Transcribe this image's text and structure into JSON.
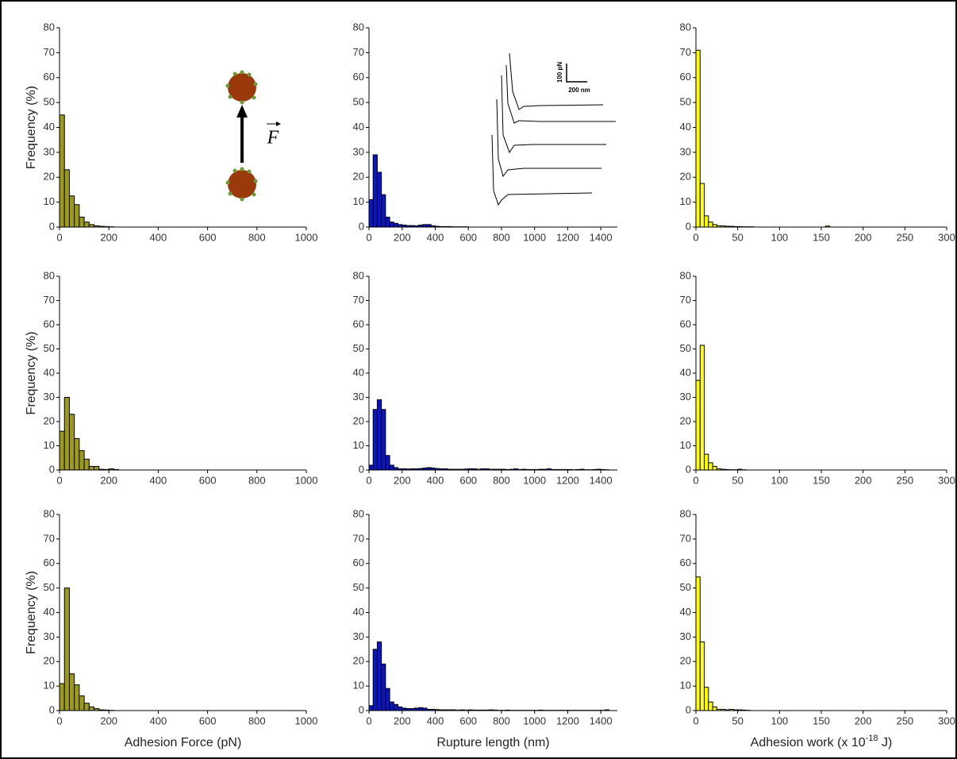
{
  "chart_data": [
    {
      "type": "histogram",
      "color": "#9b9a1c",
      "edgecolor": "#000000",
      "y_label": "Frequency (%)",
      "annotations": [
        "F"
      ],
      "bins": [
        0,
        20,
        40,
        60,
        80,
        100,
        120,
        140,
        160,
        180,
        200,
        220
      ],
      "values": [
        45,
        23,
        12.5,
        9,
        4,
        2,
        1,
        0.5,
        0.3,
        0.2,
        0.1
      ],
      "xlim": [
        0,
        1000
      ],
      "xticks": [
        0,
        200,
        400,
        600,
        800,
        1000
      ],
      "ylim": [
        0,
        80
      ],
      "yticks": [
        0,
        10,
        20,
        30,
        40,
        50,
        60,
        70,
        80
      ]
    },
    {
      "type": "histogram",
      "color": "#0a14c8",
      "edgecolor": "#000000",
      "annotations": [
        "100 pN",
        "200 nm"
      ],
      "bins": [
        0,
        25,
        50,
        75,
        100,
        125,
        150,
        175,
        200,
        225,
        250,
        275,
        300,
        325,
        350,
        375,
        400,
        425,
        450,
        475,
        500,
        525,
        550,
        575,
        600
      ],
      "values": [
        11,
        29,
        22,
        13,
        4,
        2,
        1.5,
        1,
        0.8,
        0.6,
        0.6,
        0.5,
        0.8,
        1,
        1,
        0.5,
        0.3,
        0.2,
        0.2,
        0.2,
        0.1,
        0.1,
        0.1,
        0.1
      ],
      "xlim": [
        0,
        1500
      ],
      "xticks": [
        0,
        200,
        400,
        600,
        800,
        1000,
        1200,
        1400
      ],
      "ylim": [
        0,
        80
      ],
      "yticks": [
        0,
        10,
        20,
        30,
        40,
        50,
        60,
        70,
        80
      ]
    },
    {
      "type": "histogram",
      "color": "#ffff00",
      "edgecolor": "#000000",
      "bins": [
        0,
        5,
        10,
        15,
        20,
        25,
        30,
        35,
        40,
        45,
        50,
        55,
        60,
        65,
        70,
        75,
        80,
        85,
        90,
        95,
        100,
        105,
        110,
        115,
        120,
        125,
        130,
        135,
        140,
        145,
        150,
        155,
        160
      ],
      "values": [
        71,
        17.5,
        4.5,
        2,
        1,
        0.5,
        0.5,
        0.3,
        0.3,
        0.2,
        0.2,
        0.1,
        0.1,
        0.1,
        0,
        0,
        0,
        0,
        0,
        0,
        0,
        0,
        0,
        0,
        0,
        0,
        0,
        0,
        0,
        0,
        0,
        0.4
      ],
      "xlim": [
        0,
        300
      ],
      "xticks": [
        0,
        50,
        100,
        150,
        200,
        250,
        300
      ],
      "ylim": [
        0,
        80
      ],
      "yticks": [
        0,
        10,
        20,
        30,
        40,
        50,
        60,
        70,
        80
      ]
    },
    {
      "type": "histogram",
      "color": "#9b9a1c",
      "edgecolor": "#000000",
      "y_label": "Frequency (%)",
      "bins": [
        0,
        20,
        40,
        60,
        80,
        100,
        120,
        140,
        160,
        180,
        200,
        220,
        240
      ],
      "values": [
        16,
        30,
        23,
        13,
        8,
        4.5,
        1.5,
        1.5,
        0.3,
        0.2,
        0.5,
        0.2
      ],
      "xlim": [
        0,
        1000
      ],
      "xticks": [
        0,
        200,
        400,
        600,
        800,
        1000
      ],
      "ylim": [
        0,
        80
      ],
      "yticks": [
        0,
        10,
        20,
        30,
        40,
        50,
        60,
        70,
        80
      ]
    },
    {
      "type": "histogram",
      "color": "#0a14c8",
      "edgecolor": "#000000",
      "bins": [
        0,
        25,
        50,
        75,
        100,
        125,
        150,
        175,
        200,
        225,
        250,
        275,
        300,
        325,
        350,
        375,
        400,
        425,
        450,
        475,
        500,
        525,
        550,
        575,
        600,
        625,
        650,
        675,
        700,
        725,
        750,
        775,
        800,
        825,
        850,
        875,
        900,
        925,
        950,
        975,
        1000,
        1025,
        1050,
        1075,
        1100,
        1125,
        1150,
        1175,
        1200,
        1225,
        1250,
        1275,
        1300,
        1325,
        1350,
        1375,
        1400,
        1425,
        1450
      ],
      "values": [
        2,
        25,
        29,
        25,
        6,
        2,
        1,
        0.5,
        0.5,
        0.4,
        0.5,
        0.5,
        0.6,
        0.8,
        1,
        0.8,
        0.6,
        0.5,
        0.5,
        0.3,
        0.3,
        0.3,
        0.3,
        0.4,
        0.5,
        0.5,
        0.3,
        0.5,
        0.5,
        0.3,
        0.3,
        0.3,
        0.3,
        0.2,
        0.3,
        0.5,
        0.2,
        0.3,
        0.2,
        0.2,
        0.2,
        0.3,
        0.3,
        0.5,
        0.2,
        0.2,
        0.2,
        0.2,
        0.2,
        0.1,
        0.2,
        0.3,
        0.1,
        0.1,
        0.2,
        0.3,
        0.2,
        0.1
      ],
      "xlim": [
        0,
        1500
      ],
      "xticks": [
        0,
        200,
        400,
        600,
        800,
        1000,
        1200,
        1400
      ],
      "ylim": [
        0,
        80
      ],
      "yticks": [
        0,
        10,
        20,
        30,
        40,
        50,
        60,
        70,
        80
      ]
    },
    {
      "type": "histogram",
      "color": "#ffff00",
      "edgecolor": "#000000",
      "bins": [
        0,
        5,
        10,
        15,
        20,
        25,
        30,
        35,
        40,
        45,
        50,
        55,
        60
      ],
      "values": [
        37,
        51.5,
        6.5,
        3,
        1.5,
        0.5,
        0.3,
        0.2,
        0.1,
        0.1,
        0.3,
        0.1
      ],
      "xlim": [
        0,
        300
      ],
      "xticks": [
        0,
        50,
        100,
        150,
        200,
        250,
        300
      ],
      "ylim": [
        0,
        80
      ],
      "yticks": [
        0,
        10,
        20,
        30,
        40,
        50,
        60,
        70,
        80
      ]
    },
    {
      "type": "histogram",
      "color": "#9b9a1c",
      "edgecolor": "#000000",
      "y_label": "Frequency (%)",
      "x_label": "Adhesion Force (pN)",
      "bins": [
        0,
        20,
        40,
        60,
        80,
        100,
        120,
        140,
        160,
        180,
        200,
        220
      ],
      "values": [
        11,
        50,
        15,
        10.5,
        6,
        3,
        1.5,
        0.8,
        0.3,
        0.2,
        0.1
      ],
      "xlim": [
        0,
        1000
      ],
      "xticks": [
        0,
        200,
        400,
        600,
        800,
        1000
      ],
      "ylim": [
        0,
        80
      ],
      "yticks": [
        0,
        10,
        20,
        30,
        40,
        50,
        60,
        70,
        80
      ]
    },
    {
      "type": "histogram",
      "color": "#0a14c8",
      "edgecolor": "#000000",
      "x_label": "Rupture length (nm)",
      "bins": [
        0,
        25,
        50,
        75,
        100,
        125,
        150,
        175,
        200,
        225,
        250,
        275,
        300,
        325,
        350,
        375,
        400,
        425,
        450,
        475,
        500,
        525,
        550,
        575,
        600,
        625,
        650,
        675,
        700,
        725,
        750,
        775,
        800,
        825,
        850,
        875,
        900,
        925,
        950,
        975,
        1000,
        1025,
        1050,
        1075,
        1100,
        1125,
        1150,
        1175,
        1200,
        1225,
        1250,
        1275,
        1300,
        1325,
        1350,
        1375,
        1400,
        1425,
        1450
      ],
      "values": [
        2,
        25,
        28,
        19,
        9,
        3.5,
        2.5,
        1.5,
        1,
        0.8,
        0.8,
        1,
        1.2,
        1,
        0.5,
        0.5,
        0.4,
        0.3,
        0.3,
        0.3,
        0.3,
        0.2,
        0.3,
        0.2,
        0.3,
        0.2,
        0.2,
        0.2,
        0.2,
        0.3,
        0.2,
        0.1,
        0.1,
        0.2,
        0.1,
        0.1,
        0.1,
        0.1,
        0.1,
        0.1,
        0.1,
        0.2,
        0.1,
        0.1,
        0.1,
        0.1,
        0.1,
        0.1,
        0.1,
        0.1,
        0.1,
        0.1,
        0.1,
        0.1,
        0.1,
        0.1,
        0.1,
        0.3
      ],
      "xlim": [
        0,
        1500
      ],
      "xticks": [
        0,
        200,
        400,
        600,
        800,
        1000,
        1200,
        1400
      ],
      "ylim": [
        0,
        80
      ],
      "yticks": [
        0,
        10,
        20,
        30,
        40,
        50,
        60,
        70,
        80
      ]
    },
    {
      "type": "histogram",
      "color": "#ffff00",
      "edgecolor": "#000000",
      "x_label": {
        "text": "Adhesion work (x 10",
        "superscript": "-18",
        "suffix": " J)"
      },
      "bins": [
        0,
        5,
        10,
        15,
        20,
        25,
        30,
        35,
        40,
        45,
        50,
        55,
        60,
        65
      ],
      "values": [
        54.5,
        28,
        9.5,
        3.5,
        1.5,
        0.5,
        0.5,
        0.3,
        0.5,
        0.3,
        0.3,
        0.2,
        0.1
      ],
      "xlim": [
        0,
        300
      ],
      "xticks": [
        0,
        50,
        100,
        150,
        200,
        250,
        300
      ],
      "ylim": [
        0,
        80
      ],
      "yticks": [
        0,
        10,
        20,
        30,
        40,
        50,
        60,
        70,
        80
      ]
    }
  ]
}
